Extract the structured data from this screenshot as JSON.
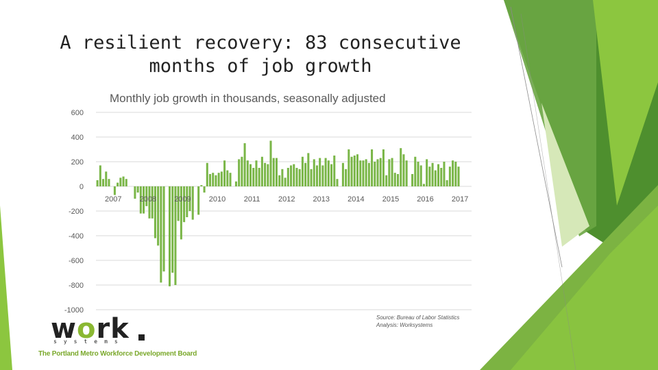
{
  "slide": {
    "title_line1": "A resilient recovery: 83 consecutive",
    "title_line2": "months of job growth",
    "source_line1": "Source: Bureau of Labor Statistics",
    "source_line2": "Analysis: Worksystems",
    "logo_text_w": "w",
    "logo_text_rk": "rk",
    "logo_text_o": "o",
    "logo_subtext": "systems",
    "tagline": "The Portland Metro Workforce Development Board",
    "colors": {
      "bar": "#7ab648",
      "grid": "#d9d9d9",
      "accent_dark": "#4e8f2e",
      "accent_light": "#8cc63f"
    }
  },
  "chart_data": {
    "type": "bar",
    "title": "Monthly job growth in thousands, seasonally adjusted",
    "xlabel": "",
    "ylabel": "",
    "ylim": [
      -1000,
      600
    ],
    "yticks": [
      600,
      400,
      200,
      0,
      -200,
      -400,
      -600,
      -800,
      -1000
    ],
    "ytick_labels": [
      "600",
      "400",
      "200",
      "0",
      "-200",
      "-400",
      "-600",
      "-800",
      "-1000"
    ],
    "year_labels": [
      "2007",
      "2008",
      "2009",
      "2010",
      "2011",
      "2012",
      "2013",
      "2014",
      "2015",
      "2016",
      "2017"
    ],
    "start": "2007-01",
    "grid": true,
    "values": [
      50,
      170,
      60,
      120,
      60,
      0,
      -70,
      30,
      70,
      80,
      60,
      0,
      0,
      -100,
      -50,
      -220,
      -220,
      -160,
      -260,
      -260,
      -420,
      -480,
      -780,
      -690,
      0,
      -810,
      -700,
      -800,
      -280,
      -430,
      -290,
      -250,
      -200,
      -270,
      0,
      -230,
      10,
      -50,
      190,
      100,
      110,
      90,
      110,
      120,
      210,
      130,
      110,
      0,
      40,
      220,
      240,
      350,
      210,
      180,
      150,
      210,
      150,
      240,
      190,
      180,
      370,
      230,
      230,
      90,
      140,
      70,
      150,
      170,
      180,
      150,
      140,
      240,
      190,
      270,
      140,
      220,
      170,
      230,
      170,
      230,
      210,
      180,
      250,
      60,
      0,
      190,
      140,
      300,
      240,
      250,
      260,
      210,
      210,
      220,
      190,
      300,
      200,
      220,
      230,
      300,
      90,
      220,
      230,
      110,
      100,
      310,
      260,
      210,
      0,
      100,
      240,
      200,
      170,
      20,
      220,
      160,
      190,
      130,
      180,
      150,
      200,
      50,
      160,
      210,
      200,
      160
    ]
  }
}
